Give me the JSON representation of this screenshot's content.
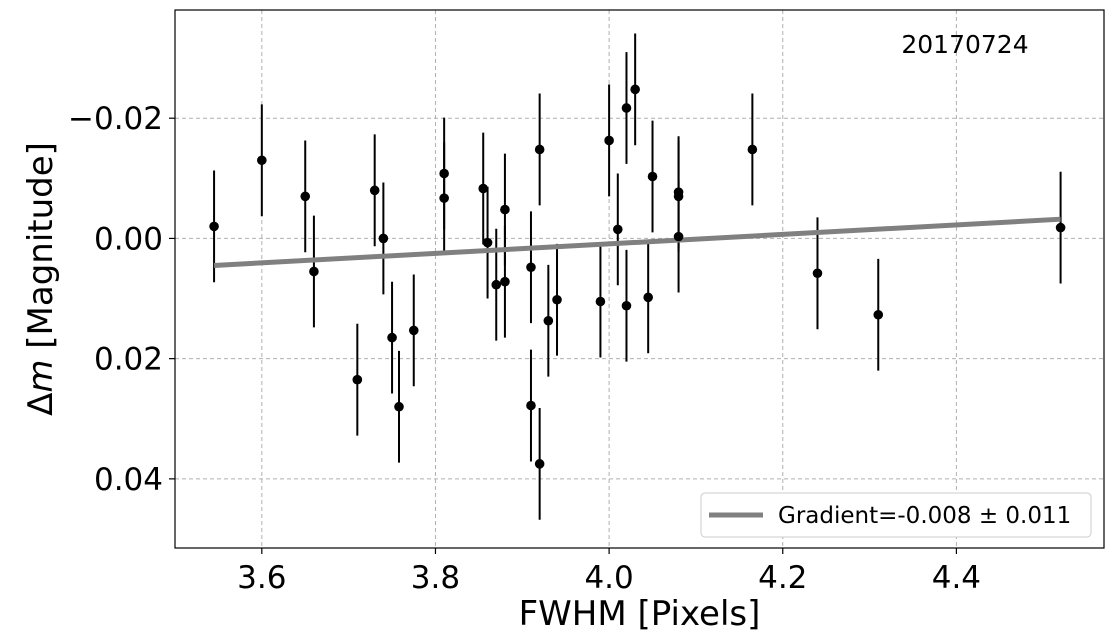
{
  "chart_data": {
    "type": "scatter",
    "xlabel": "FWHM [Pixels]",
    "ylabel_prefix": "Δ",
    "ylabel_var": "m",
    "ylabel_suffix": " [Magnitude]",
    "annotation": "20170724",
    "xlim": [
      3.5,
      4.57
    ],
    "ylim": [
      0.0515,
      -0.038
    ],
    "y_inverted": true,
    "x_ticks": [
      3.6,
      3.8,
      4.0,
      4.2,
      4.4
    ],
    "x_tick_labels": [
      "3.6",
      "3.8",
      "4.0",
      "4.2",
      "4.4"
    ],
    "y_ticks": [
      -0.02,
      0.0,
      0.02,
      0.04
    ],
    "y_tick_labels": [
      "−0.02",
      "0.00",
      "0.02",
      "0.04"
    ],
    "grid": true,
    "legend_position": "bottom-right",
    "point_color": "#000000",
    "fit_color": "#808080",
    "points": [
      {
        "x": 3.545,
        "y": -0.002,
        "err": 0.0093
      },
      {
        "x": 3.6,
        "y": -0.013,
        "err": 0.0093
      },
      {
        "x": 3.65,
        "y": -0.007,
        "err": 0.0093
      },
      {
        "x": 3.66,
        "y": 0.0055,
        "err": 0.0093
      },
      {
        "x": 3.71,
        "y": 0.0235,
        "err": 0.0093
      },
      {
        "x": 3.73,
        "y": -0.008,
        "err": 0.0093
      },
      {
        "x": 3.74,
        "y": 0.0,
        "err": 0.0093
      },
      {
        "x": 3.75,
        "y": 0.0165,
        "err": 0.0093
      },
      {
        "x": 3.758,
        "y": 0.028,
        "err": 0.0093
      },
      {
        "x": 3.775,
        "y": 0.0153,
        "err": 0.0093
      },
      {
        "x": 3.81,
        "y": -0.0108,
        "err": 0.0093
      },
      {
        "x": 3.81,
        "y": -0.0067,
        "err": 0.0093
      },
      {
        "x": 3.855,
        "y": -0.0083,
        "err": 0.0093
      },
      {
        "x": 3.86,
        "y": 0.0007,
        "err": 0.0093
      },
      {
        "x": 3.87,
        "y": 0.0077,
        "err": 0.0093
      },
      {
        "x": 3.88,
        "y": -0.0048,
        "err": 0.0093
      },
      {
        "x": 3.88,
        "y": 0.0072,
        "err": 0.0093
      },
      {
        "x": 3.91,
        "y": 0.0048,
        "err": 0.0093
      },
      {
        "x": 3.91,
        "y": 0.0278,
        "err": 0.0093
      },
      {
        "x": 3.92,
        "y": -0.0148,
        "err": 0.0093
      },
      {
        "x": 3.92,
        "y": 0.0375,
        "err": 0.0093
      },
      {
        "x": 3.93,
        "y": 0.0137,
        "err": 0.0093
      },
      {
        "x": 3.94,
        "y": 0.0102,
        "err": 0.0093
      },
      {
        "x": 3.99,
        "y": 0.0105,
        "err": 0.0093
      },
      {
        "x": 4.0,
        "y": -0.0163,
        "err": 0.0093
      },
      {
        "x": 4.01,
        "y": -0.0015,
        "err": 0.0093
      },
      {
        "x": 4.02,
        "y": -0.0217,
        "err": 0.0093
      },
      {
        "x": 4.02,
        "y": 0.0112,
        "err": 0.0093
      },
      {
        "x": 4.03,
        "y": -0.0248,
        "err": 0.0093
      },
      {
        "x": 4.045,
        "y": 0.0098,
        "err": 0.0093
      },
      {
        "x": 4.05,
        "y": -0.0103,
        "err": 0.0093
      },
      {
        "x": 4.08,
        "y": -0.0077,
        "err": 0.0093
      },
      {
        "x": 4.08,
        "y": -0.007,
        "err": 0.0093
      },
      {
        "x": 4.08,
        "y": -0.0003,
        "err": 0.0093
      },
      {
        "x": 4.165,
        "y": -0.0148,
        "err": 0.0093
      },
      {
        "x": 4.24,
        "y": 0.0058,
        "err": 0.0093
      },
      {
        "x": 4.31,
        "y": 0.0127,
        "err": 0.0093
      },
      {
        "x": 4.52,
        "y": -0.0018,
        "err": 0.0093
      }
    ],
    "fit_line": {
      "x": [
        3.545,
        4.52
      ],
      "y": [
        0.0045,
        -0.0032
      ]
    },
    "legend": [
      {
        "label": "Gradient=-0.008 ± 0.011",
        "color": "#808080"
      }
    ]
  }
}
